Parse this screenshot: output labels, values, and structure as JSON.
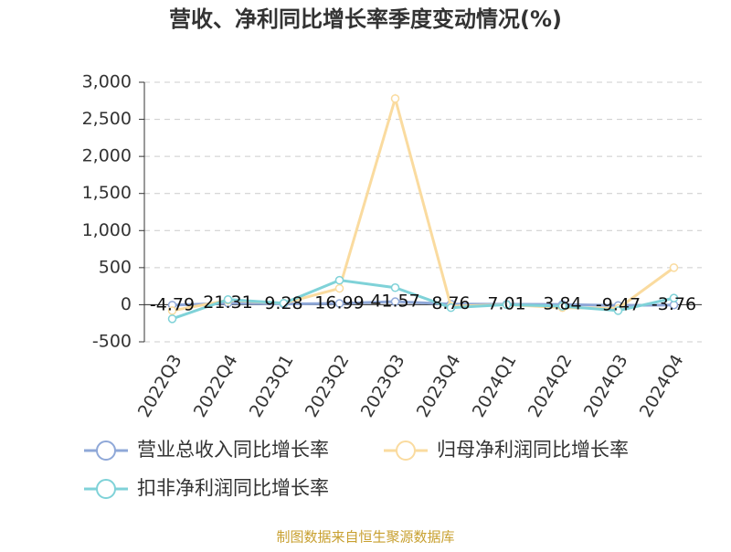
{
  "chart_data": {
    "type": "line",
    "title": "营收、净利同比增长率季度变动情况(%)",
    "categories": [
      "2022Q3",
      "2022Q4",
      "2023Q1",
      "2023Q2",
      "2023Q3",
      "2023Q4",
      "2024Q1",
      "2024Q2",
      "2024Q3",
      "2024Q4"
    ],
    "series": [
      {
        "name": "营业总收入同比增长率",
        "color": "#8fa8d8",
        "values": [
          -4.79,
          21.31,
          9.28,
          16.99,
          41.57,
          8.76,
          7.01,
          3.84,
          -9.47,
          -3.76
        ],
        "data_labels": true
      },
      {
        "name": "归母净利润同比增长率",
        "color": "#fadb9f",
        "values": [
          -80,
          60,
          20,
          220,
          2780,
          -20,
          0,
          -40,
          -50,
          500
        ]
      },
      {
        "name": "扣非净利润同比增长率",
        "color": "#7fd2d8",
        "values": [
          -190,
          70,
          20,
          330,
          230,
          -40,
          0,
          -20,
          -80,
          90
        ]
      }
    ],
    "ylim": [
      -500,
      3000
    ],
    "yticks": [
      {
        "value": 3000,
        "label": "3,000"
      },
      {
        "value": 2500,
        "label": "2,500"
      },
      {
        "value": 2000,
        "label": "2,000"
      },
      {
        "value": 1500,
        "label": "1,500"
      },
      {
        "value": 1000,
        "label": "1,000"
      },
      500,
      0,
      -500
    ],
    "grid": true,
    "source": "制图数据来自恒生聚源数据库"
  }
}
